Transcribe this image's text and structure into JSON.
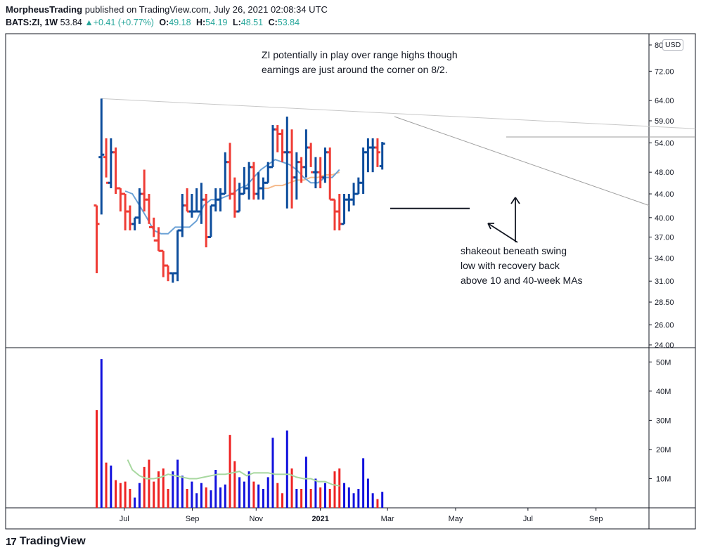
{
  "header": {
    "author": "MorpheusTrading",
    "published_text": "published on TradingView.com, July 26, 2021 02:08:34 UTC",
    "symbol": "BATS:ZI, 1W",
    "last": "53.84",
    "change_arrow": "▲",
    "change": "+0.41 (+0.77%)",
    "o_label": "O:",
    "o_value": "49.18",
    "h_label": "H:",
    "h_value": "54.19",
    "l_label": "L:",
    "l_value": "48.51",
    "c_label": "C:",
    "c_value": "53.84",
    "up_color": "#26a69a"
  },
  "currency_badge": "USD",
  "footer": {
    "logo": "17",
    "brand": "TradingView"
  },
  "chart_data": {
    "type": "ohlc",
    "scale": "log",
    "price_range": [
      24,
      80
    ],
    "volume_range": [
      0,
      52000000
    ],
    "price_ticks": [
      "80.00",
      "72.00",
      "64.00",
      "59.00",
      "54.00",
      "48.00",
      "44.00",
      "40.00",
      "37.00",
      "34.00",
      "31.00",
      "28.50",
      "26.00",
      "24.00"
    ],
    "volume_ticks": [
      "50M",
      "40M",
      "30M",
      "20M",
      "10M"
    ],
    "x_ticks": [
      "Jul",
      "Sep",
      "Nov",
      "2021",
      "Mar",
      "May",
      "Jul",
      "Sep"
    ],
    "up_color": "#0d4d9c",
    "down_color": "#ef3c35",
    "vol_up_color": "#1111dd",
    "vol_down_color": "#ee2222",
    "ma10_color": "#6ca2d6",
    "ma40_color": "#f5b98a",
    "vol_ma_color": "#a8d8a0",
    "bars": [
      [
        48,
        "2020-05-29",
        42,
        42,
        32,
        39,
        33.5
      ],
      [
        48,
        "2020-06-05",
        51,
        64.5,
        40.5,
        51.5,
        51
      ],
      [
        48,
        "2020-06-12",
        51,
        55,
        47,
        46,
        15.5
      ],
      [
        48,
        "2020-06-19",
        46,
        55,
        45,
        52,
        14.5
      ],
      [
        48,
        "2020-06-26",
        52,
        53,
        44,
        45,
        9.5
      ],
      [
        48,
        "2020-07-03",
        45,
        45,
        41,
        44,
        8.5
      ],
      [
        48,
        "2020-07-10",
        44,
        44,
        38,
        41,
        9
      ],
      [
        48,
        "2020-07-17",
        41,
        42,
        38,
        39,
        6.5
      ],
      [
        48,
        "2020-07-24",
        39,
        40,
        38,
        40,
        3.5
      ],
      [
        48,
        "2020-07-31",
        40,
        45,
        39,
        44,
        8.5
      ],
      [
        48,
        "2020-08-07",
        44,
        48.5,
        41,
        43,
        14
      ],
      [
        48,
        "2020-08-14",
        43,
        44,
        39,
        38.5,
        16.5
      ],
      [
        48,
        "2020-08-21",
        38.5,
        40,
        37,
        36.5,
        9
      ],
      [
        48,
        "2020-08-28",
        36.5,
        38.5,
        35,
        35,
        12.5
      ],
      [
        48,
        "2020-09-04",
        35,
        35,
        31.5,
        33,
        13.5
      ],
      [
        48,
        "2020-09-11",
        33,
        33,
        31,
        32,
        6.5
      ],
      [
        48,
        "2020-09-18",
        32,
        32,
        30.8,
        32,
        12.5
      ],
      [
        48,
        "2020-09-25",
        32,
        38,
        31,
        38,
        16.5
      ],
      [
        48,
        "2020-10-02",
        38,
        44,
        37,
        42,
        11
      ],
      [
        48,
        "2020-10-09",
        42,
        45,
        41,
        41,
        6.5
      ],
      [
        48,
        "2020-10-16",
        41,
        44,
        40,
        41,
        9
      ],
      [
        48,
        "2020-10-23",
        41,
        45,
        41,
        41,
        5
      ],
      [
        48,
        "2020-10-30",
        41,
        46,
        39,
        43,
        8.5
      ],
      [
        48,
        "2020-11-06",
        43,
        44,
        35.5,
        37,
        7
      ],
      [
        48,
        "2020-11-13",
        37,
        42,
        37,
        42,
        6
      ],
      [
        48,
        "2020-11-20",
        42,
        45,
        41,
        43,
        13
      ],
      [
        48,
        "2020-11-27",
        43,
        45,
        41,
        44,
        7
      ],
      [
        48,
        "2020-12-04",
        44,
        52,
        44,
        50,
        8
      ],
      [
        48,
        "2020-12-11",
        50,
        54,
        43,
        44,
        25
      ],
      [
        48,
        "2020-12-18",
        44,
        47,
        40,
        41,
        16
      ],
      [
        48,
        "2020-12-25",
        41,
        46,
        41,
        44,
        10.5
      ],
      [
        48,
        "2021-01-01",
        44,
        49,
        44,
        45,
        9
      ],
      [
        48,
        "2021-01-08",
        45,
        50,
        43,
        49,
        12.5
      ],
      [
        48,
        "2021-01-15",
        49,
        50,
        43,
        44,
        9
      ],
      [
        48,
        "2021-01-22",
        44,
        48,
        43,
        45,
        8
      ],
      [
        48,
        "2021-01-29",
        45,
        47,
        43,
        46,
        6.5
      ],
      [
        48,
        "2021-02-05",
        46,
        50,
        46,
        49,
        10.5
      ],
      [
        48,
        "2021-02-12",
        49,
        58,
        49,
        57,
        24
      ],
      [
        48,
        "2021-02-19",
        57,
        58,
        52,
        56,
        8.5
      ],
      [
        48,
        "2021-02-26",
        56,
        57,
        50,
        52,
        5
      ],
      [
        48,
        "2021-03-05",
        52,
        60,
        41.5,
        52,
        26.5
      ],
      [
        48,
        "2021-03-12",
        52,
        57,
        41.5,
        47,
        13.5
      ],
      [
        48,
        "2021-03-19",
        47,
        52,
        43,
        50,
        6.5
      ],
      [
        48,
        "2021-03-26",
        50,
        51,
        46,
        49,
        6.5
      ],
      [
        48,
        "2021-04-02",
        49,
        57,
        47,
        53,
        17.5
      ],
      [
        48,
        "2021-04-09",
        53,
        54,
        49,
        48,
        6.5
      ],
      [
        48,
        "2021-04-16",
        48,
        51,
        45,
        48,
        10
      ],
      [
        48,
        "2021-04-23",
        48,
        51,
        45,
        47,
        7
      ],
      [
        48,
        "2021-04-30",
        47,
        53,
        46,
        52,
        8.5
      ],
      [
        48,
        "2021-05-07",
        52,
        53,
        43,
        43,
        6.5
      ],
      [
        48,
        "2021-05-14",
        43,
        43,
        38,
        41,
        12.5
      ],
      [
        48,
        "2021-05-21",
        41,
        44,
        38,
        39,
        13.5
      ],
      [
        48,
        "2021-05-28",
        39,
        44,
        39,
        43,
        8.5
      ],
      [
        48,
        "2021-06-04",
        43,
        44,
        41,
        43,
        7
      ],
      [
        48,
        "2021-06-11",
        43,
        46,
        42,
        44,
        5
      ],
      [
        48,
        "2021-06-18",
        44,
        47,
        44,
        46,
        6.5
      ],
      [
        48,
        "2021-06-25",
        46,
        53,
        44,
        52,
        17
      ],
      [
        48,
        "2021-07-02",
        52,
        55,
        48,
        53,
        10
      ],
      [
        48,
        "2021-07-09",
        53,
        55,
        48,
        53,
        5
      ],
      [
        48,
        "2021-07-16",
        53,
        55,
        49,
        52,
        3
      ],
      [
        48,
        "2021-07-23",
        49.18,
        54.19,
        48.51,
        53.84,
        5.5
      ]
    ],
    "ma10": [
      [
        13,
        44.5
      ],
      [
        16,
        44
      ],
      [
        19,
        42
      ],
      [
        22,
        40
      ],
      [
        25,
        38
      ],
      [
        28,
        37.5
      ],
      [
        31,
        37.5
      ],
      [
        34,
        38.5
      ],
      [
        37,
        38.5
      ],
      [
        40,
        38.5
      ],
      [
        43,
        39.5
      ],
      [
        46,
        42
      ],
      [
        49,
        43
      ],
      [
        52,
        43
      ],
      [
        55,
        43.5
      ],
      [
        58,
        44
      ],
      [
        61,
        45
      ],
      [
        64,
        45.5
      ],
      [
        67,
        47
      ],
      [
        70,
        48.5
      ],
      [
        73,
        49.5
      ],
      [
        76,
        50.5
      ],
      [
        79,
        50
      ],
      [
        82,
        49.5
      ],
      [
        85,
        48.5
      ],
      [
        88,
        47
      ],
      [
        91,
        46
      ],
      [
        94,
        46
      ],
      [
        97,
        47
      ],
      [
        100,
        47
      ],
      [
        103,
        48.5
      ]
    ],
    "ma40": [
      [
        70,
        45
      ],
      [
        73,
        45
      ],
      [
        76,
        45.5
      ],
      [
        79,
        45.5
      ],
      [
        82,
        46
      ],
      [
        85,
        46.5
      ],
      [
        88,
        46.5
      ],
      [
        91,
        47
      ],
      [
        94,
        47
      ],
      [
        97,
        47.5
      ],
      [
        100,
        47.5
      ],
      [
        103,
        48
      ]
    ],
    "vol_ma": [
      [
        14,
        16.5
      ],
      [
        16,
        13
      ],
      [
        19,
        11
      ],
      [
        22,
        10
      ],
      [
        25,
        10
      ],
      [
        28,
        10.5
      ],
      [
        31,
        11.5
      ],
      [
        34,
        11
      ],
      [
        37,
        10.5
      ],
      [
        40,
        10
      ],
      [
        43,
        10
      ],
      [
        46,
        10.5
      ],
      [
        49,
        11
      ],
      [
        52,
        11.5
      ],
      [
        55,
        11.5
      ],
      [
        58,
        12
      ],
      [
        61,
        12.5
      ],
      [
        64,
        11
      ],
      [
        67,
        12
      ],
      [
        70,
        12
      ],
      [
        73,
        12
      ],
      [
        76,
        11.5
      ],
      [
        79,
        11.5
      ],
      [
        82,
        11.5
      ],
      [
        85,
        10.5
      ],
      [
        88,
        10
      ],
      [
        91,
        10
      ],
      [
        94,
        9
      ],
      [
        97,
        9
      ],
      [
        100,
        8
      ],
      [
        103,
        7.5
      ]
    ],
    "annotations": [
      {
        "id": "note-top",
        "lines": [
          "ZI potentially in play over range highs though",
          "earnings are just around the corner on 8/2."
        ]
      },
      {
        "id": "note-shakeout",
        "lines": [
          "shakeout beneath swing",
          "low with recovery back",
          "above 10 and 40-week MAs"
        ]
      }
    ]
  }
}
